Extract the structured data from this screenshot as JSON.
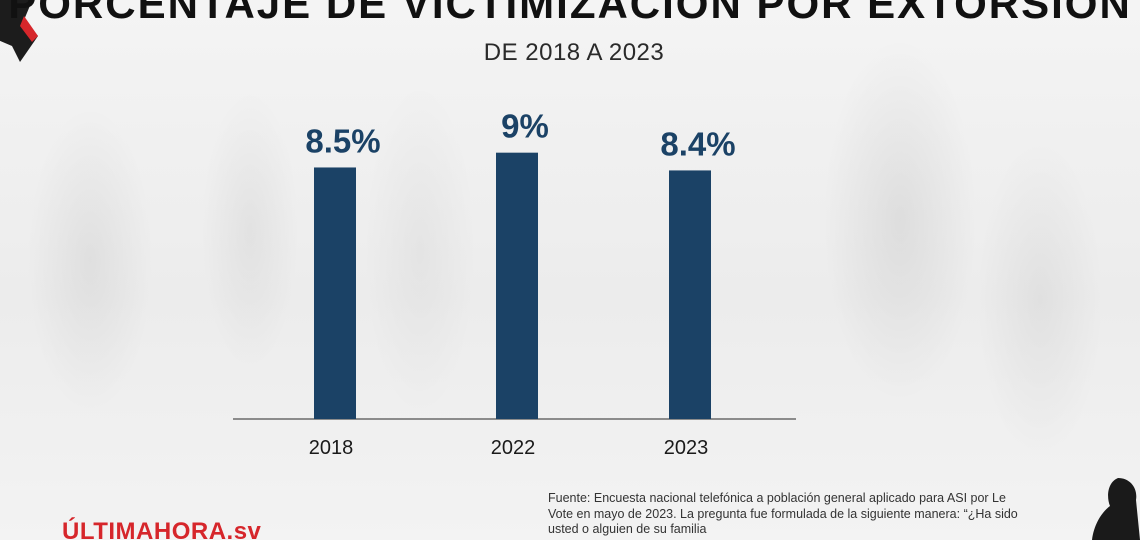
{
  "title": "PORCENTAJE DE VICTIMIZACIÓN POR EXTORSIÓN",
  "subtitle": "DE 2018 A 2023",
  "chart_data": {
    "type": "bar",
    "categories": [
      "2018",
      "2022",
      "2023"
    ],
    "values": [
      8.5,
      9,
      8.4
    ],
    "value_labels": [
      "8.5%",
      "9%",
      "8.4%"
    ],
    "ylim": [
      0,
      9.8
    ],
    "grid": false,
    "bar_color": "#1b4266",
    "label_color": "#1b4266"
  },
  "source": "Fuente: Encuesta nacional telefónica a población general aplicado para ASI por Le Vote en mayo de 2023. La pregunta fue formulada de la siguiente manera: “¿Ha sido usted o alguien de su familia",
  "brand": "ÚLTIMAHORA.sv",
  "colors": {
    "brand": "#d6262b",
    "axis": "#6b6b6b"
  }
}
